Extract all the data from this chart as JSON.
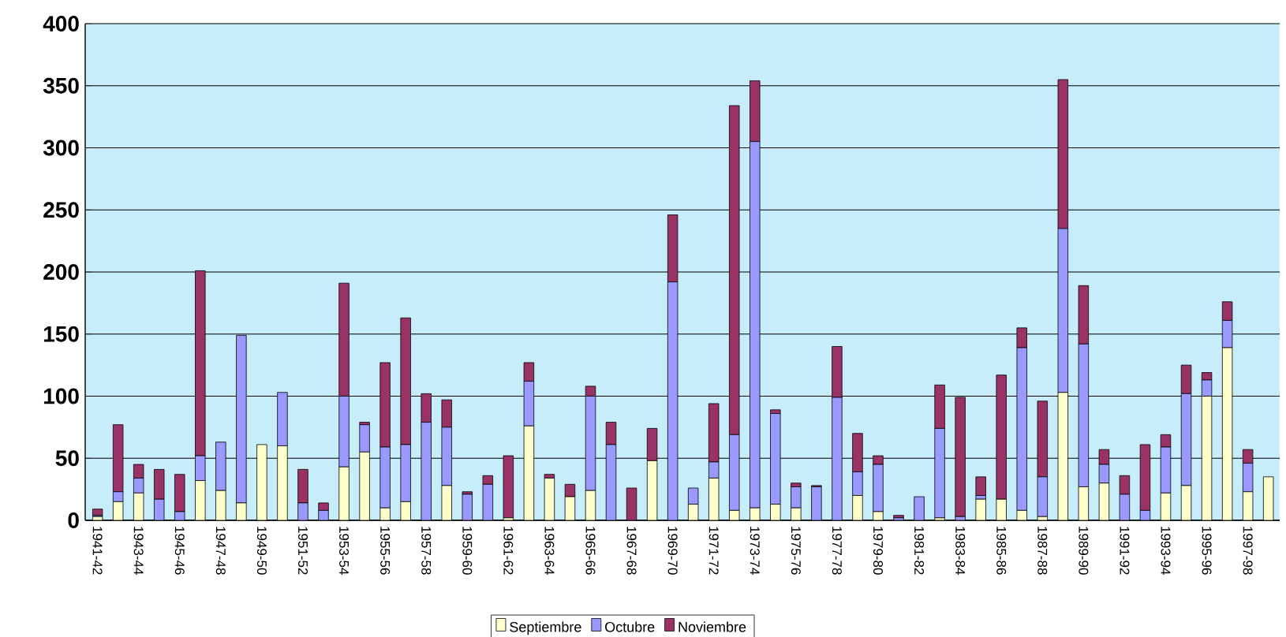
{
  "chart_data": {
    "type": "bar",
    "stacked": true,
    "categories": [
      "1941-42",
      null,
      "1943-44",
      null,
      "1945-46",
      null,
      "1947-48",
      null,
      "1949-50",
      null,
      "1951-52",
      null,
      "1953-54",
      null,
      "1955-56",
      null,
      "1957-58",
      null,
      "1959-60",
      null,
      "1961-62",
      null,
      "1963-64",
      null,
      "1965-66",
      null,
      "1967-68",
      null,
      "1969-70",
      null,
      "1971-72",
      null,
      "1973-74",
      null,
      "1975-76",
      null,
      "1977-78",
      null,
      "1979-80",
      null,
      "1981-82",
      null,
      "1983-84",
      null,
      "1985-86",
      null,
      "1987-88",
      null,
      "1989-90",
      null,
      "1991-92",
      null,
      "1993-94",
      null,
      "1995-96",
      null,
      "1997-98",
      null
    ],
    "series": [
      {
        "name": "Septiembre",
        "color": "#ffffcc",
        "values": [
          3,
          15,
          22,
          0,
          0,
          32,
          24,
          14,
          61,
          60,
          null,
          0,
          43,
          55,
          10,
          15,
          null,
          28,
          0,
          0,
          2,
          76,
          34,
          19,
          24,
          0,
          0,
          48,
          0,
          13,
          34,
          8,
          10,
          13,
          10,
          0,
          0,
          20,
          7,
          0,
          0,
          2,
          0,
          17,
          17,
          8,
          3,
          103,
          27,
          30,
          0,
          0,
          22,
          28,
          100,
          139,
          23,
          35
        ]
      },
      {
        "name": "Octubre",
        "color": "#9999ff",
        "values": [
          1,
          8,
          12,
          17,
          7,
          20,
          39,
          135,
          0,
          43,
          14,
          8,
          57,
          22,
          49,
          46,
          79,
          47,
          21,
          29,
          null,
          36,
          0,
          null,
          76,
          61,
          0,
          0,
          192,
          13,
          13,
          61,
          295,
          73,
          17,
          27,
          99,
          19,
          38,
          2,
          19,
          72,
          3,
          3,
          0,
          131,
          32,
          132,
          115,
          15,
          21,
          8,
          37,
          74,
          13,
          22,
          23,
          0
        ]
      },
      {
        "name": "Noviembre",
        "color": "#993366",
        "values": [
          5,
          54,
          11,
          24,
          30,
          149,
          0,
          0,
          null,
          0,
          27,
          6,
          91,
          2,
          68,
          102,
          23,
          22,
          2,
          7,
          50,
          15,
          3,
          10,
          8,
          18,
          26,
          26,
          54,
          0,
          47,
          265,
          49,
          3,
          3,
          1,
          41,
          31,
          7,
          2,
          0,
          35,
          96,
          15,
          100,
          16,
          61,
          120,
          47,
          12,
          15,
          53,
          10,
          23,
          6,
          15,
          11,
          0
        ]
      }
    ],
    "ylim": [
      0,
      400
    ],
    "yticks": [
      0,
      50,
      100,
      150,
      200,
      250,
      300,
      350,
      400
    ],
    "grid": "y",
    "legend": "bottom"
  }
}
